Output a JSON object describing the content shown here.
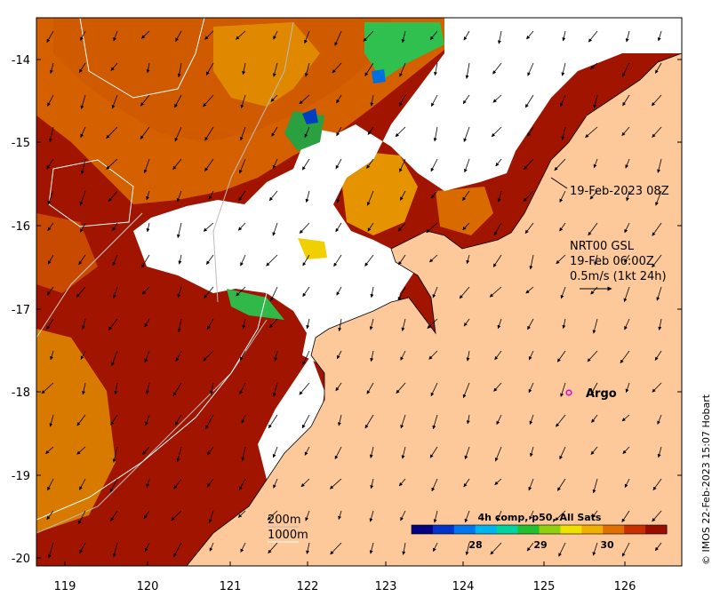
{
  "map": {
    "x_ticks": [
      "119",
      "120",
      "121",
      "122",
      "123",
      "124",
      "125",
      "126"
    ],
    "y_ticks": [
      "-14",
      "-15",
      "-16",
      "-17",
      "-18",
      "-19",
      "-20"
    ]
  },
  "annotations": {
    "date_label": "19-Feb-2023 08Z",
    "current_source": "NRT00 GSL",
    "current_time": "19-Feb 06:00Z",
    "current_scale": "0.5m/s (1kt 24h)",
    "argo_label": "Argo",
    "depth_200": "200m",
    "depth_1000": "1000m",
    "credit": "© IMOS 22-Feb-2023 15:07 Hobart"
  },
  "colorbar": {
    "title": "4h comp, p50, All Sats",
    "ticks": [
      "28",
      "29",
      "30"
    ],
    "colors": [
      "#000080",
      "#0033cc",
      "#0077ee",
      "#00b4f0",
      "#00d2a0",
      "#20c030",
      "#90d010",
      "#f0e000",
      "#f0b000",
      "#e07000",
      "#c83000",
      "#9a0e00"
    ]
  },
  "colors": {
    "land": "#fdc99a",
    "no_data": "#ffffff",
    "sst_low": "#e8a000",
    "sst_high": "#a01000"
  }
}
